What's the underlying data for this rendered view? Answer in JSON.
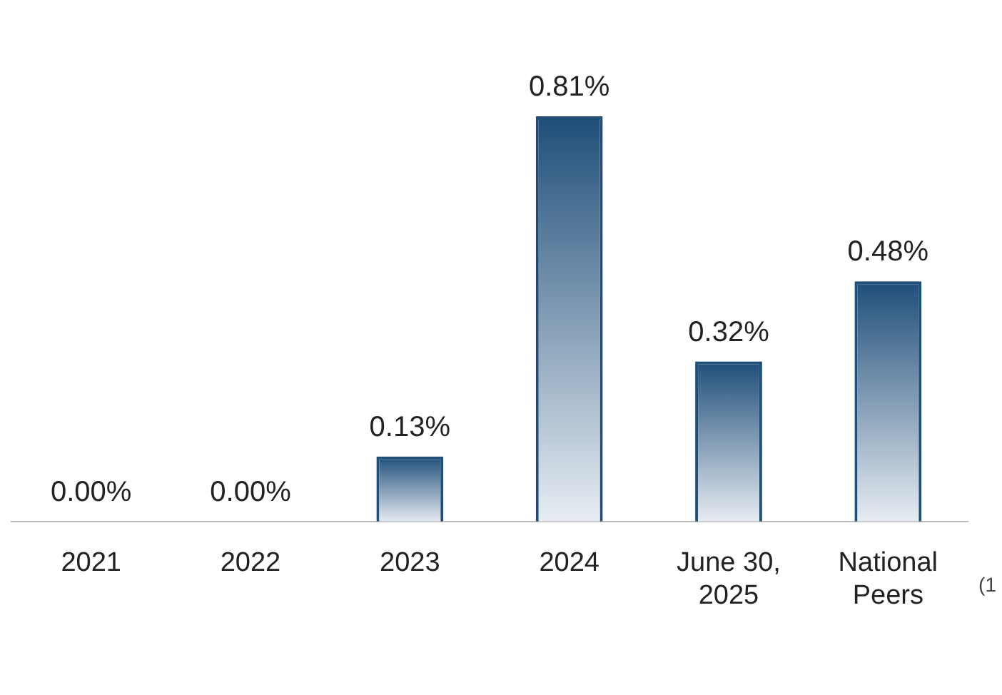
{
  "chart_data": {
    "type": "bar",
    "categories": [
      "2021",
      "2022",
      "2023",
      "2024",
      "June 30, 2025",
      "National Peers"
    ],
    "values": [
      0,
      0,
      0.13,
      0.81,
      0.32,
      0.48
    ],
    "value_labels": [
      "0.00%",
      "0.00%",
      "0.13%",
      "0.81%",
      "0.32%",
      "0.48%"
    ],
    "color": "#1f4e79",
    "grid": false,
    "legend": false,
    "tick_labels": "x",
    "annotations": [
      "(1"
    ]
  }
}
